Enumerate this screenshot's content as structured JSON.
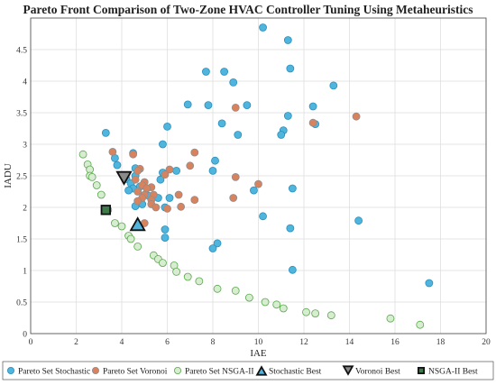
{
  "chart_data": {
    "type": "scatter",
    "title": "Pareto Front Comparison of Two-Zone HVAC Controller Tuning Using Metaheuristics",
    "xlabel": "IAE",
    "ylabel": "IADU",
    "xlim": [
      0,
      20
    ],
    "ylim": [
      0,
      5
    ],
    "xticks": [
      "0",
      "2",
      "4",
      "6",
      "8",
      "10",
      "12",
      "14",
      "16",
      "18",
      "20"
    ],
    "yticks": [
      "0",
      "0.5",
      "1",
      "1.5",
      "2",
      "2.5",
      "3",
      "3.5",
      "4",
      "4.5"
    ],
    "grid": true,
    "legend_position": "bottom",
    "series": [
      {
        "name": "Pareto Set Stochastic",
        "marker": "circle",
        "fill": "#4fb5dd",
        "stroke": "#2a8fbd",
        "points": [
          [
            10.2,
            4.85
          ],
          [
            11.3,
            4.65
          ],
          [
            11.4,
            4.2
          ],
          [
            7.7,
            4.15
          ],
          [
            8.5,
            4.15
          ],
          [
            8.9,
            3.98
          ],
          [
            13.3,
            3.93
          ],
          [
            6.9,
            3.63
          ],
          [
            7.8,
            3.62
          ],
          [
            9.5,
            3.62
          ],
          [
            12.4,
            3.6
          ],
          [
            11.3,
            3.45
          ],
          [
            8.4,
            3.33
          ],
          [
            12.5,
            3.32
          ],
          [
            6.0,
            3.28
          ],
          [
            11.1,
            3.22
          ],
          [
            3.3,
            3.18
          ],
          [
            9.1,
            3.15
          ],
          [
            11.0,
            3.15
          ],
          [
            5.8,
            3.0
          ],
          [
            4.5,
            2.86
          ],
          [
            3.7,
            2.78
          ],
          [
            8.1,
            2.74
          ],
          [
            3.8,
            2.67
          ],
          [
            4.6,
            2.62
          ],
          [
            6.4,
            2.58
          ],
          [
            8.0,
            2.58
          ],
          [
            5.8,
            2.55
          ],
          [
            4.6,
            2.5
          ],
          [
            4.2,
            2.45
          ],
          [
            5.7,
            2.44
          ],
          [
            4.4,
            2.38
          ],
          [
            4.8,
            2.33
          ],
          [
            4.5,
            2.3
          ],
          [
            5.1,
            2.3
          ],
          [
            4.3,
            2.27
          ],
          [
            9.8,
            2.27
          ],
          [
            11.5,
            2.3
          ],
          [
            5.2,
            2.18
          ],
          [
            5.6,
            2.15
          ],
          [
            6.1,
            2.15
          ],
          [
            4.9,
            2.05
          ],
          [
            4.6,
            2.02
          ],
          [
            5.9,
            2.0
          ],
          [
            10.2,
            1.86
          ],
          [
            14.4,
            1.79
          ],
          [
            11.4,
            1.67
          ],
          [
            5.9,
            1.65
          ],
          [
            5.9,
            1.52
          ],
          [
            8.2,
            1.43
          ],
          [
            8.0,
            1.35
          ],
          [
            11.5,
            1.01
          ],
          [
            17.5,
            0.8
          ]
        ]
      },
      {
        "name": "Pareto Set Voronoi",
        "marker": "circle",
        "fill": "#d8825e",
        "stroke": "#8e8e8e",
        "points": [
          [
            14.3,
            3.44
          ],
          [
            9.0,
            3.58
          ],
          [
            12.4,
            3.34
          ],
          [
            3.6,
            2.88
          ],
          [
            4.5,
            2.84
          ],
          [
            7.2,
            2.87
          ],
          [
            7.0,
            2.66
          ],
          [
            4.8,
            2.61
          ],
          [
            4.7,
            2.58
          ],
          [
            6.1,
            2.6
          ],
          [
            5.9,
            2.52
          ],
          [
            9.0,
            2.48
          ],
          [
            4.6,
            2.44
          ],
          [
            5.0,
            2.4
          ],
          [
            4.9,
            2.35
          ],
          [
            5.3,
            2.32
          ],
          [
            5.1,
            2.3
          ],
          [
            4.7,
            2.25
          ],
          [
            5.4,
            2.2
          ],
          [
            5.0,
            2.2
          ],
          [
            10.0,
            2.37
          ],
          [
            4.9,
            2.15
          ],
          [
            5.3,
            2.12
          ],
          [
            6.5,
            2.2
          ],
          [
            7.2,
            2.12
          ],
          [
            8.9,
            2.15
          ],
          [
            4.7,
            2.1
          ],
          [
            5.3,
            2.05
          ],
          [
            5.5,
            2.0
          ],
          [
            6.6,
            2.01
          ],
          [
            6.0,
            1.98
          ],
          [
            5.0,
            1.75
          ]
        ]
      },
      {
        "name": "Pareto Set NSGA-II",
        "marker": "circle",
        "fill": "#d6edcf",
        "stroke": "#5aa64d",
        "points": [
          [
            2.3,
            2.84
          ],
          [
            2.5,
            2.68
          ],
          [
            2.6,
            2.6
          ],
          [
            2.6,
            2.5
          ],
          [
            2.7,
            2.48
          ],
          [
            2.9,
            2.35
          ],
          [
            3.1,
            2.2
          ],
          [
            3.4,
            1.96
          ],
          [
            3.7,
            1.75
          ],
          [
            4.0,
            1.7
          ],
          [
            4.3,
            1.55
          ],
          [
            4.4,
            1.5
          ],
          [
            4.7,
            1.38
          ],
          [
            5.4,
            1.24
          ],
          [
            5.6,
            1.18
          ],
          [
            5.8,
            1.12
          ],
          [
            6.3,
            1.08
          ],
          [
            6.4,
            0.98
          ],
          [
            6.9,
            0.9
          ],
          [
            7.4,
            0.83
          ],
          [
            8.2,
            0.71
          ],
          [
            9.0,
            0.68
          ],
          [
            9.6,
            0.57
          ],
          [
            10.3,
            0.5
          ],
          [
            10.8,
            0.46
          ],
          [
            11.1,
            0.4
          ],
          [
            12.1,
            0.34
          ],
          [
            12.5,
            0.32
          ],
          [
            13.2,
            0.29
          ],
          [
            15.8,
            0.24
          ],
          [
            17.1,
            0.14
          ]
        ]
      },
      {
        "name": "Stochastic Best",
        "marker": "triangle-up",
        "fill": "#4fb5dd",
        "stroke": "#111111",
        "points": [
          [
            4.7,
            1.72
          ]
        ]
      },
      {
        "name": "Voronoi Best",
        "marker": "triangle-down",
        "fill": "#8a8a8a",
        "stroke": "#111111",
        "points": [
          [
            4.1,
            2.48
          ]
        ]
      },
      {
        "name": "NSGA-II Best",
        "marker": "square",
        "fill": "#3f7a4c",
        "stroke": "#111111",
        "points": [
          [
            3.3,
            1.96
          ]
        ]
      }
    ]
  }
}
